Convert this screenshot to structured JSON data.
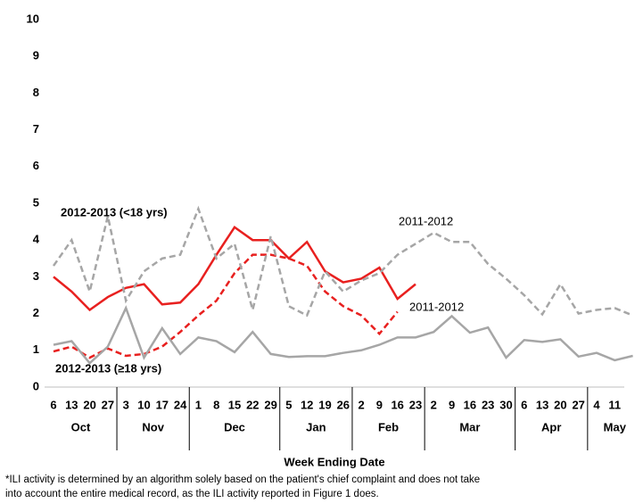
{
  "chart_data": {
    "type": "line",
    "x_axis_label": "Week Ending Date",
    "categories": [
      "6",
      "13",
      "20",
      "27",
      "3",
      "10",
      "17",
      "24",
      "1",
      "8",
      "15",
      "22",
      "29",
      "5",
      "12",
      "19",
      "26",
      "2",
      "9",
      "16",
      "23",
      "2",
      "9",
      "16",
      "23",
      "30",
      "6",
      "13",
      "20",
      "27",
      "4",
      "11",
      null
    ],
    "months": [
      "Oct",
      "Nov",
      "Dec",
      "Jan",
      "Feb",
      "Mar",
      "Apr",
      "May"
    ],
    "ylim": [
      0,
      10
    ],
    "yticks": [
      0,
      1,
      2,
      3,
      4,
      5,
      6,
      7,
      8,
      9,
      10
    ],
    "series": [
      {
        "name": "2012-2013 (<18 yrs)",
        "color": "#e8201f",
        "dashed": false,
        "values": [
          3.0,
          2.6,
          2.1,
          2.45,
          2.7,
          2.8,
          2.25,
          2.3,
          2.8,
          3.6,
          4.35,
          4.0,
          4.0,
          3.5,
          3.95,
          3.15,
          2.85,
          2.95,
          3.25,
          2.4,
          2.8,
          null,
          null,
          null,
          null,
          null,
          null,
          null,
          null,
          null,
          null,
          null,
          null
        ]
      },
      {
        "name": "2012-2013 (≥18 yrs)",
        "color": "#e8201f",
        "dashed": true,
        "values": [
          0.97,
          1.1,
          0.8,
          1.05,
          0.85,
          0.9,
          1.1,
          1.5,
          1.95,
          2.35,
          3.1,
          3.6,
          3.6,
          3.5,
          3.3,
          2.6,
          2.2,
          1.95,
          1.45,
          2.05,
          null,
          null,
          null,
          null,
          null,
          null,
          null,
          null,
          null,
          null,
          null,
          null,
          null
        ]
      },
      {
        "name": "2011-2012",
        "color": "#a6a6a6",
        "dashed": true,
        "values": [
          3.3,
          4.0,
          2.6,
          4.65,
          2.35,
          3.15,
          3.5,
          3.6,
          4.85,
          3.5,
          3.9,
          2.1,
          4.1,
          2.2,
          1.95,
          3.15,
          2.6,
          2.9,
          3.1,
          3.6,
          3.9,
          4.2,
          3.95,
          3.95,
          3.35,
          2.95,
          2.5,
          1.98,
          2.8,
          2.0,
          2.1,
          2.15,
          1.95
        ]
      },
      {
        "name": "2011-2012",
        "color": "#a6a6a6",
        "dashed": false,
        "values": [
          1.15,
          1.25,
          0.65,
          1.1,
          2.15,
          0.8,
          1.6,
          0.9,
          1.35,
          1.25,
          0.95,
          1.5,
          0.9,
          0.82,
          0.84,
          0.84,
          0.93,
          1.0,
          1.15,
          1.35,
          1.35,
          1.5,
          1.93,
          1.48,
          1.62,
          0.8,
          1.28,
          1.23,
          1.3,
          0.83,
          0.93,
          0.73,
          0.85
        ]
      }
    ],
    "footnote": [
      "*ILI activity is determined by an algorithm solely based on the patient's chief complaint and does not take",
      "into account the entire medical record, as the ILI activity reported in Figure 1 does."
    ]
  }
}
